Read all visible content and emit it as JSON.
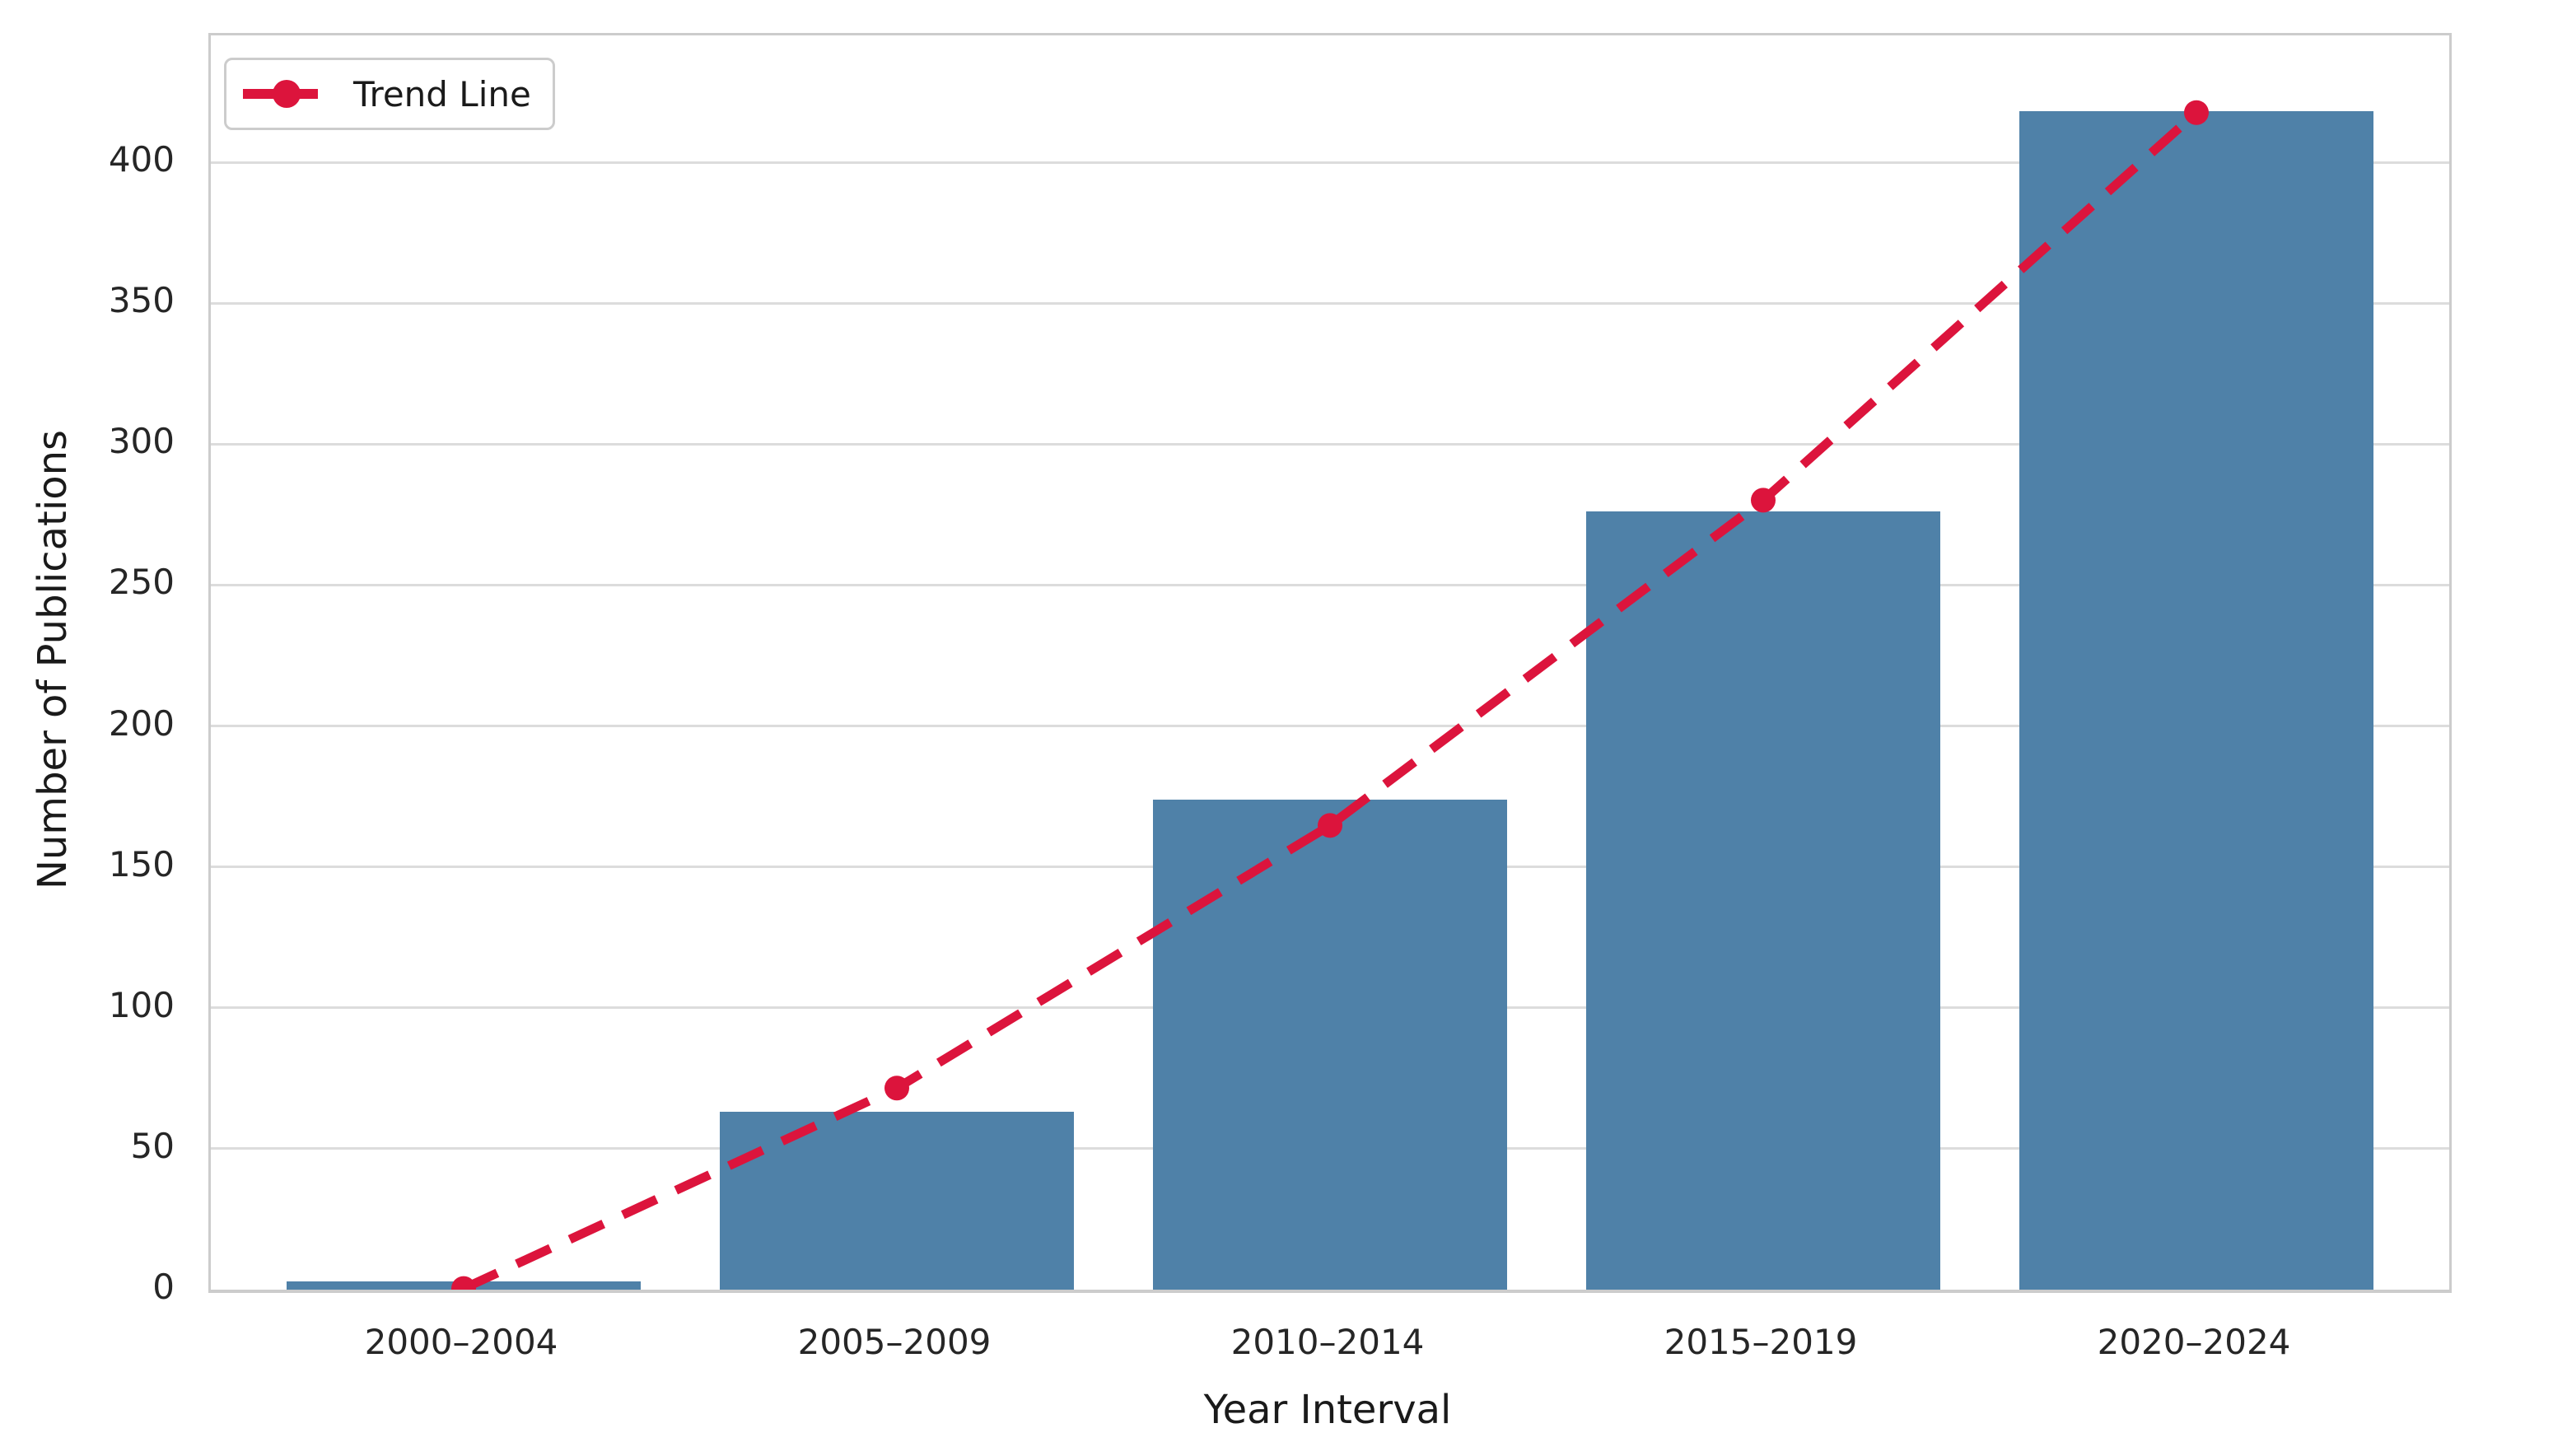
{
  "chart_data": {
    "type": "bar",
    "title": "",
    "categories": [
      "2000–2004",
      "2005–2009",
      "2010–2014",
      "2015–2019",
      "2020–2024"
    ],
    "series": [
      {
        "name": "Publications",
        "kind": "bar",
        "values": [
          3,
          63,
          174,
          276,
          418
        ]
      },
      {
        "name": "Trend Line",
        "kind": "line",
        "style": "dashed",
        "marker": "circle",
        "values": [
          0.4,
          71.5,
          164.7,
          280.1,
          417.6
        ]
      }
    ],
    "xlabel": "Year Interval",
    "ylabel": "Number of Publications",
    "ylim": [
      0,
      445
    ],
    "yticks": [
      0,
      50,
      100,
      150,
      200,
      250,
      300,
      350,
      400
    ],
    "grid": "horizontal-only",
    "legend": {
      "position": "upper-left",
      "entries": [
        "Trend Line"
      ]
    }
  },
  "colors": {
    "bar": "#4f81a8",
    "trend": "#dc143c",
    "gridline": "#dcdcdc",
    "spine": "#cccccc",
    "tick_text": "#262626",
    "label_text": "#1a1a1a",
    "legend_border": "#cccccc",
    "background": "#ffffff"
  }
}
